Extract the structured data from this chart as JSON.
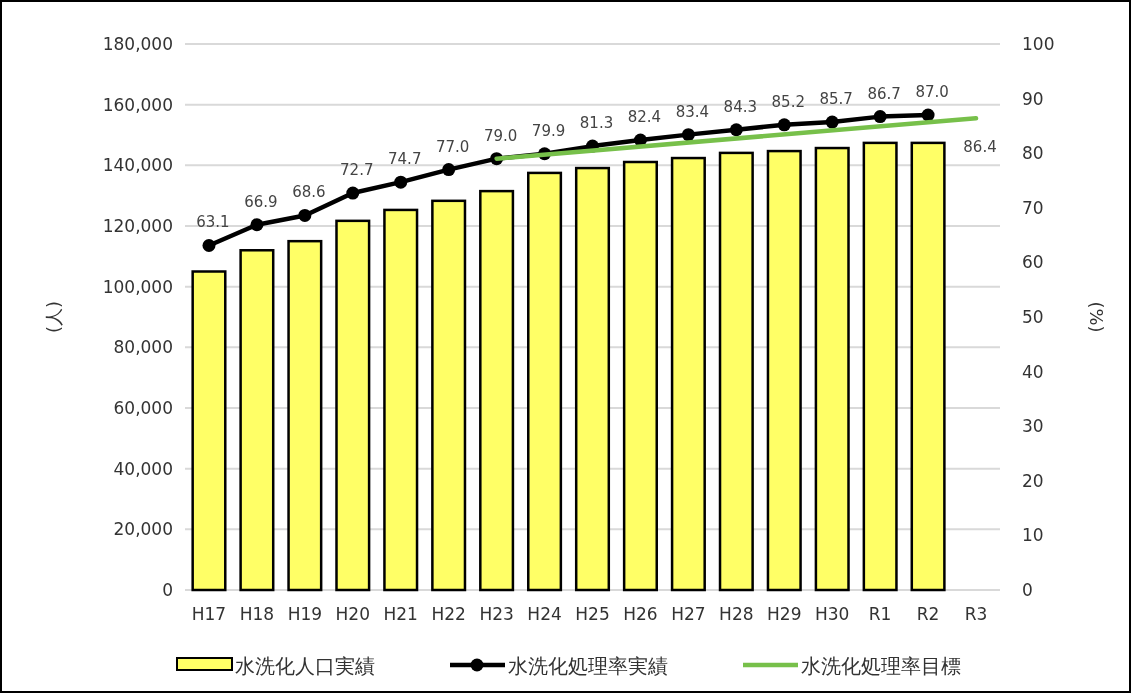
{
  "chart_data": {
    "type": "bar",
    "categories": [
      "H17",
      "H18",
      "H19",
      "H20",
      "H21",
      "H22",
      "H23",
      "H24",
      "H25",
      "H26",
      "H27",
      "H28",
      "H29",
      "H30",
      "R1",
      "R2",
      "R3"
    ],
    "ylabel": "(人)",
    "y2label": "(%)",
    "ylim": [
      0,
      180000
    ],
    "yticks": [
      {
        "value": 0,
        "label": "0"
      },
      {
        "value": 20000,
        "label": "20,000"
      },
      {
        "value": 40000,
        "label": "40,000"
      },
      {
        "value": 60000,
        "label": "60,000"
      },
      {
        "value": 80000,
        "label": "80,000"
      },
      {
        "value": 100000,
        "label": "100,000"
      },
      {
        "value": 120000,
        "label": "120,000"
      },
      {
        "value": 140000,
        "label": "140,000"
      },
      {
        "value": 160000,
        "label": "160,000"
      },
      {
        "value": 180000,
        "label": "180,000"
      }
    ],
    "y2lim": [
      0,
      100
    ],
    "y2ticks": [
      0,
      10,
      20,
      30,
      40,
      50,
      60,
      70,
      80,
      90,
      100
    ],
    "grid": "y",
    "legend": "bottom",
    "series": [
      {
        "name": "水洗化人口実績",
        "color": "#ffff66",
        "values": [
          105000,
          112000,
          115000,
          121700,
          125300,
          128300,
          131500,
          137500,
          139100,
          141100,
          142400,
          144100,
          144700,
          145700,
          147400,
          147400,
          null
        ]
      },
      {
        "name": "水洗化処理率実績",
        "type": "line",
        "axis": "y2",
        "color": "#000000",
        "marker": "circle",
        "values": [
          63.1,
          66.9,
          68.6,
          72.7,
          74.7,
          77.0,
          79.0,
          79.9,
          81.3,
          82.4,
          83.4,
          84.3,
          85.2,
          85.7,
          86.7,
          87.0,
          null
        ],
        "value_labels": [
          "63.1",
          "66.9",
          "68.6",
          "72.7",
          "74.7",
          "77.0",
          "79.0",
          "79.9",
          "81.3",
          "82.4",
          "83.4",
          "84.3",
          "85.2",
          "85.7",
          "86.7",
          "87.0",
          null
        ]
      },
      {
        "name": "水洗化処理率目標",
        "type": "line",
        "axis": "y2",
        "color": "#77c04a",
        "marker": "none",
        "x": [
          "H23",
          "R3"
        ],
        "values": [
          79.0,
          86.4
        ],
        "value_labels": [
          null,
          "86.4"
        ]
      }
    ]
  }
}
